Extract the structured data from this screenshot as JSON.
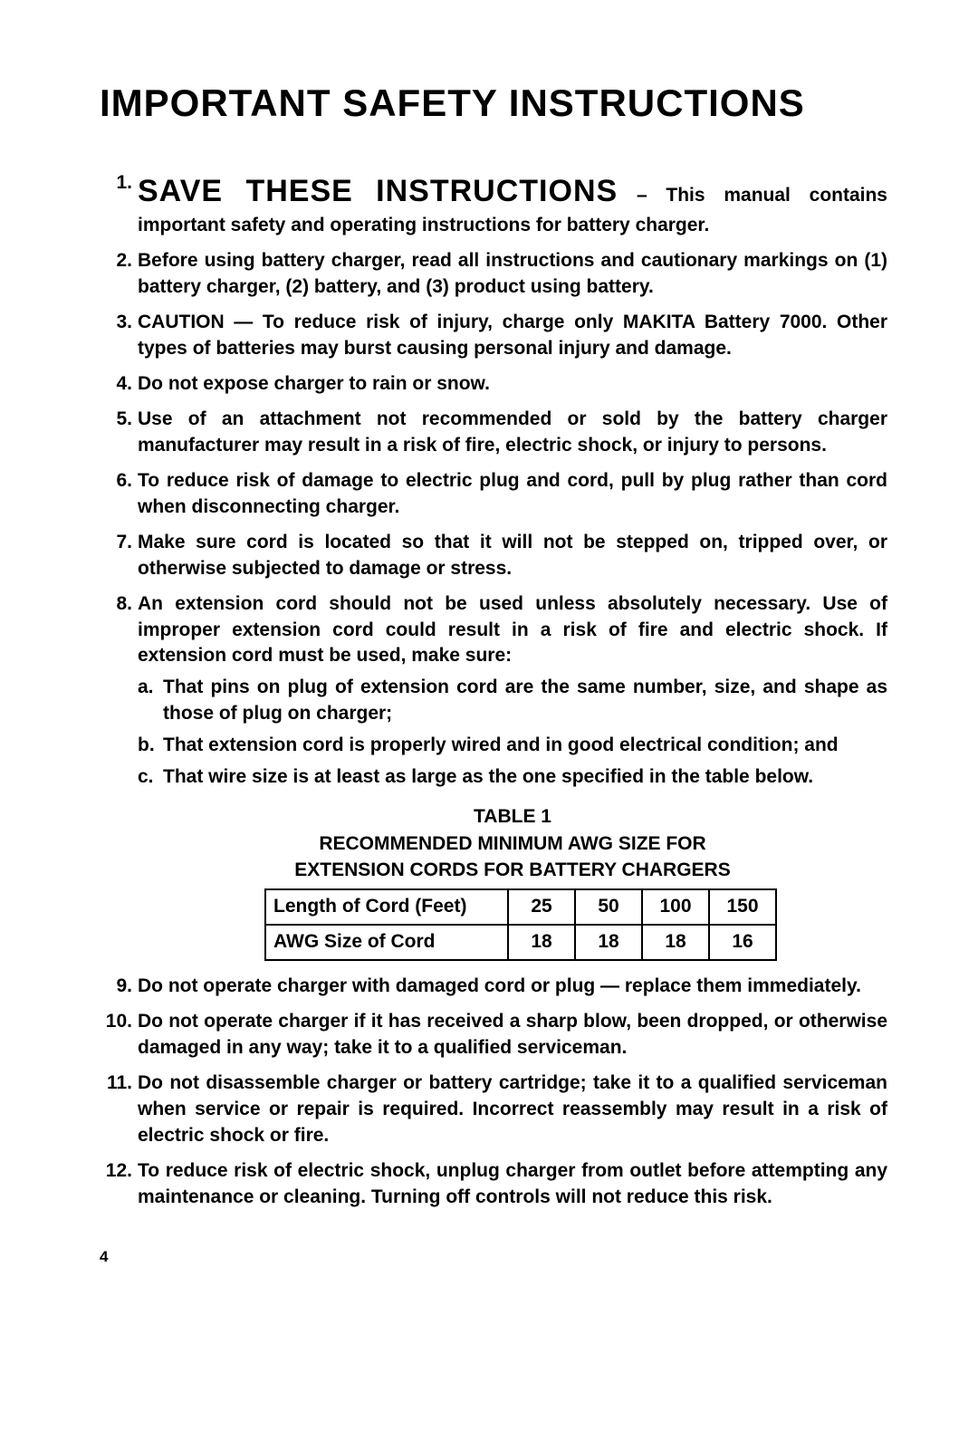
{
  "page_number": "4",
  "title": "IMPORTANT SAFETY INSTRUCTIONS",
  "items": [
    {
      "num": "1.",
      "lead": "SAVE THESE INSTRUCTIONS",
      "dash": " – ",
      "rest": "This manual contains important safety and operating instructions for battery charger."
    },
    {
      "num": "2.",
      "text": "Before using battery charger, read all instructions and cautionary markings on (1) battery charger, (2) battery, and (3) product using battery."
    },
    {
      "num": "3.",
      "text": "CAUTION — To reduce risk of injury, charge only MAKITA Battery 7000. Other types of batteries may burst causing personal injury and damage."
    },
    {
      "num": "4.",
      "text": "Do not expose charger to rain or snow."
    },
    {
      "num": "5.",
      "text": "Use of an attachment not recommended or sold by the battery charger manufacturer may result in a risk of fire, electric shock, or injury to persons."
    },
    {
      "num": "6.",
      "text": "To reduce risk of damage to electric plug and cord, pull by plug rather than cord when disconnecting charger."
    },
    {
      "num": "7.",
      "text": "Make sure cord is located so that it will not be stepped on, tripped over, or otherwise subjected to damage or stress."
    },
    {
      "num": "8.",
      "text": "An extension cord should not be used unless absolutely necessary. Use of improper extension cord could result in a risk of fire and electric shock. If extension cord must be used, make sure:",
      "sub": [
        {
          "letter": "a.",
          "text": "That pins on plug of extension cord are the same number, size, and shape as those of plug on charger;"
        },
        {
          "letter": "b.",
          "text": "That extension cord is properly wired and in good electrical condition; and"
        },
        {
          "letter": "c.",
          "text": "That wire size is at least as large as the one specified in the table below."
        }
      ]
    },
    {
      "num": "9.",
      "text": "Do not operate charger with damaged cord or plug — replace them immediately."
    },
    {
      "num": "10.",
      "text": "Do not operate charger if it has received a sharp blow, been dropped, or otherwise damaged in any way; take it to a qualified serviceman."
    },
    {
      "num": "11.",
      "text": "Do not disassemble charger or battery cartridge; take it to a qualified serviceman when service or repair is required. Incorrect reassembly may result in a risk of electric shock or fire."
    },
    {
      "num": "12.",
      "text": "To reduce risk of electric shock, unplug charger from outlet before attempting any maintenance or cleaning. Turning off controls will not reduce this risk."
    }
  ],
  "table": {
    "caption_line1": "TABLE 1",
    "caption_line2": "RECOMMENDED MINIMUM AWG SIZE FOR",
    "caption_line3": "EXTENSION CORDS FOR BATTERY CHARGERS",
    "rows": [
      {
        "label": "Length of Cord (Feet)",
        "c1": "25",
        "c2": "50",
        "c3": "100",
        "c4": "150"
      },
      {
        "label": "AWG Size of Cord",
        "c1": "18",
        "c2": "18",
        "c3": "18",
        "c4": "16"
      }
    ]
  }
}
